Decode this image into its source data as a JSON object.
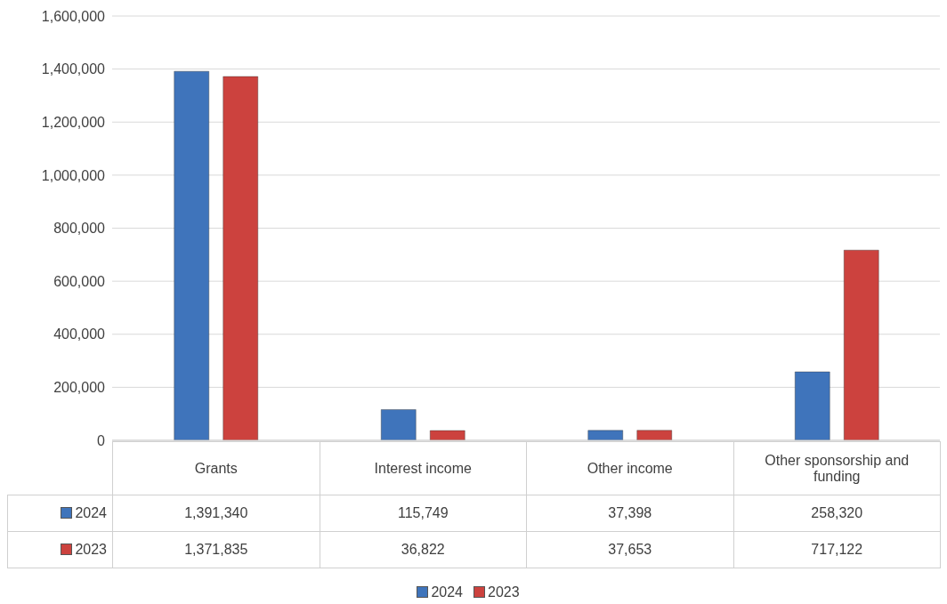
{
  "chart_data": {
    "type": "bar",
    "categories": [
      "Grants",
      "Interest income",
      "Other income",
      "Other sponsorship and funding"
    ],
    "series": [
      {
        "name": "2024",
        "color": "#3f74bb",
        "values": [
          1391340,
          115749,
          37398,
          258320
        ],
        "value_labels": [
          "1,391,340",
          "115,749",
          "37,398",
          "258,320"
        ]
      },
      {
        "name": "2023",
        "color": "#cc423e",
        "values": [
          1371835,
          36822,
          37653,
          717122
        ],
        "value_labels": [
          "1,371,835",
          "36,822",
          "37,653",
          "717,122"
        ]
      }
    ],
    "ylim": [
      0,
      1600000
    ],
    "yticks": [
      {
        "value": 0,
        "label": "0"
      },
      {
        "value": 200000,
        "label": "200,000"
      },
      {
        "value": 400000,
        "label": "400,000"
      },
      {
        "value": 600000,
        "label": "600,000"
      },
      {
        "value": 800000,
        "label": "800,000"
      },
      {
        "value": 1000000,
        "label": "1,000,000"
      },
      {
        "value": 1200000,
        "label": "1,200,000"
      },
      {
        "value": 1400000,
        "label": "1,400,000"
      },
      {
        "value": 1600000,
        "label": "1,600,000"
      }
    ],
    "grid": "y",
    "legend": "bottom"
  }
}
